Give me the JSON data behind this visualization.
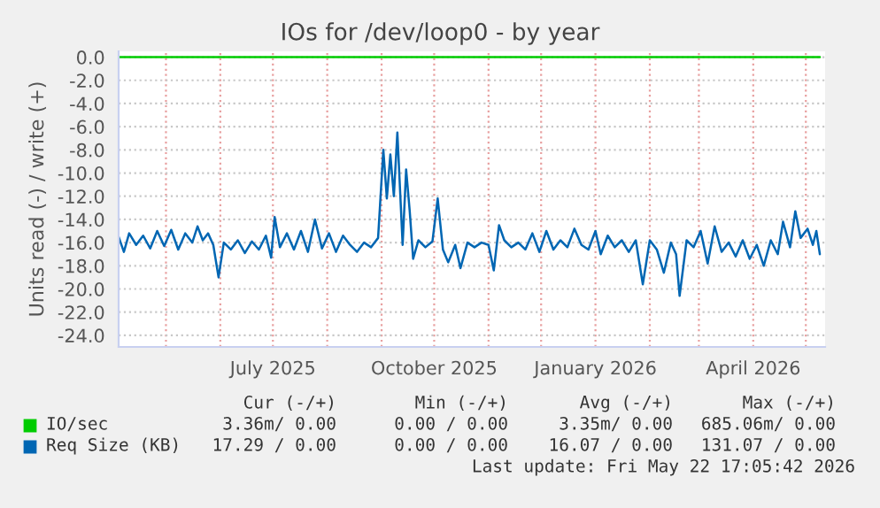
{
  "chart_data": {
    "type": "line",
    "title": "IOs for /dev/loop0 - by year",
    "ylabel": "Units read (-) / write (+)",
    "xlim": [
      "2025-04-04",
      "2026-05-12"
    ],
    "ylim": [
      -25.0,
      0.5
    ],
    "xticks": [
      {
        "value": "2025-05-01",
        "label": null
      },
      {
        "value": "2025-06-01",
        "label": null
      },
      {
        "value": "2025-07-01",
        "label": "July 2025"
      },
      {
        "value": "2025-08-01",
        "label": null
      },
      {
        "value": "2025-09-01",
        "label": null
      },
      {
        "value": "2025-10-01",
        "label": "October 2025"
      },
      {
        "value": "2025-11-01",
        "label": null
      },
      {
        "value": "2025-12-01",
        "label": null
      },
      {
        "value": "2026-01-01",
        "label": "January 2026"
      },
      {
        "value": "2026-02-01",
        "label": null
      },
      {
        "value": "2026-03-01",
        "label": null
      },
      {
        "value": "2026-04-01",
        "label": "April 2026"
      },
      {
        "value": "2026-05-01",
        "label": null
      }
    ],
    "yticks": [
      {
        "value": 0,
        "label": "0.0"
      },
      {
        "value": -2,
        "label": "-2.0"
      },
      {
        "value": -4,
        "label": "-4.0"
      },
      {
        "value": -6,
        "label": "-6.0"
      },
      {
        "value": -8,
        "label": "-8.0"
      },
      {
        "value": -10,
        "label": "-10.0"
      },
      {
        "value": -12,
        "label": "-12.0"
      },
      {
        "value": -14,
        "label": "-14.0"
      },
      {
        "value": -16,
        "label": "-16.0"
      },
      {
        "value": -18,
        "label": "-18.0"
      },
      {
        "value": -20,
        "label": "-20.0"
      },
      {
        "value": -22,
        "label": "-22.0"
      },
      {
        "value": -24,
        "label": "-24.0"
      }
    ],
    "grid": true,
    "legend": "bottom left",
    "series": [
      {
        "name": "IO/sec",
        "color": "#00cc00",
        "x": [
          "2025-04-04",
          "2026-05-09"
        ],
        "values": [
          0,
          0
        ]
      },
      {
        "name": "Req Size (KB)",
        "color": "#0066b3",
        "x": [
          "2025-04-04",
          "2025-04-07",
          "2025-04-10",
          "2025-04-14",
          "2025-04-18",
          "2025-04-22",
          "2025-04-26",
          "2025-04-30",
          "2025-05-04",
          "2025-05-08",
          "2025-05-12",
          "2025-05-16",
          "2025-05-19",
          "2025-05-22",
          "2025-05-25",
          "2025-05-28",
          "2025-05-31",
          "2025-06-03",
          "2025-06-07",
          "2025-06-11",
          "2025-06-15",
          "2025-06-19",
          "2025-06-23",
          "2025-06-27",
          "2025-06-30",
          "2025-07-02",
          "2025-07-05",
          "2025-07-09",
          "2025-07-13",
          "2025-07-17",
          "2025-07-21",
          "2025-07-25",
          "2025-07-29",
          "2025-08-02",
          "2025-08-06",
          "2025-08-10",
          "2025-08-14",
          "2025-08-18",
          "2025-08-22",
          "2025-08-26",
          "2025-08-30",
          "2025-09-02",
          "2025-09-04",
          "2025-09-06",
          "2025-09-08",
          "2025-09-10",
          "2025-09-13",
          "2025-09-15",
          "2025-09-17",
          "2025-09-19",
          "2025-09-22",
          "2025-09-26",
          "2025-09-30",
          "2025-10-03",
          "2025-10-06",
          "2025-10-09",
          "2025-10-13",
          "2025-10-16",
          "2025-10-20",
          "2025-10-24",
          "2025-10-28",
          "2025-11-01",
          "2025-11-04",
          "2025-11-07",
          "2025-11-10",
          "2025-11-14",
          "2025-11-18",
          "2025-11-22",
          "2025-11-26",
          "2025-11-30",
          "2025-12-04",
          "2025-12-08",
          "2025-12-12",
          "2025-12-16",
          "2025-12-20",
          "2025-12-24",
          "2025-12-28",
          "2026-01-01",
          "2026-01-04",
          "2026-01-08",
          "2026-01-12",
          "2026-01-16",
          "2026-01-20",
          "2026-01-24",
          "2026-01-28",
          "2026-02-01",
          "2026-02-05",
          "2026-02-09",
          "2026-02-13",
          "2026-02-16",
          "2026-02-18",
          "2026-02-22",
          "2026-02-26",
          "2026-03-02",
          "2026-03-06",
          "2026-03-10",
          "2026-03-14",
          "2026-03-18",
          "2026-03-22",
          "2026-03-26",
          "2026-03-30",
          "2026-04-03",
          "2026-04-07",
          "2026-04-11",
          "2026-04-15",
          "2026-04-18",
          "2026-04-22",
          "2026-04-25",
          "2026-04-28",
          "2026-05-02",
          "2026-05-05",
          "2026-05-07",
          "2026-05-09"
        ],
        "values": [
          -15.5,
          -16.8,
          -15.2,
          -16.2,
          -15.4,
          -16.5,
          -15.0,
          -16.3,
          -14.9,
          -16.6,
          -15.2,
          -16.0,
          -14.6,
          -15.8,
          -15.2,
          -16.2,
          -19.0,
          -16.0,
          -16.6,
          -15.8,
          -16.9,
          -15.9,
          -16.6,
          -15.4,
          -17.3,
          -13.8,
          -16.4,
          -15.2,
          -16.6,
          -15.0,
          -16.8,
          -14.0,
          -16.5,
          -15.2,
          -16.8,
          -15.4,
          -16.2,
          -16.8,
          -16.0,
          -16.4,
          -15.6,
          -8.0,
          -12.2,
          -8.4,
          -12.0,
          -6.5,
          -16.2,
          -9.7,
          -13.2,
          -17.4,
          -15.8,
          -16.4,
          -15.9,
          -12.2,
          -16.6,
          -17.7,
          -16.2,
          -18.2,
          -16.0,
          -16.4,
          -16.0,
          -16.2,
          -18.4,
          -14.5,
          -15.8,
          -16.4,
          -16.0,
          -16.6,
          -15.2,
          -16.8,
          -15.0,
          -16.6,
          -15.8,
          -16.4,
          -14.8,
          -16.2,
          -16.6,
          -15.0,
          -17.0,
          -15.4,
          -16.4,
          -15.8,
          -16.8,
          -15.8,
          -19.6,
          -15.8,
          -16.6,
          -18.6,
          -16.0,
          -17.0,
          -20.6,
          -15.8,
          -16.4,
          -15.0,
          -17.8,
          -14.6,
          -16.8,
          -16.0,
          -17.2,
          -15.8,
          -17.4,
          -16.2,
          -18.0,
          -15.8,
          -17.0,
          -14.2,
          -16.4,
          -13.3,
          -15.6,
          -14.8,
          -16.2,
          -15.0,
          -17.0
        ]
      }
    ],
    "annotations": [
      "Cur (-/+)",
      "Min (-/+)",
      "Avg (-/+)",
      "Max (-/+)",
      "3.36m/ 0.00",
      "0.00 / 0.00",
      "3.35m/ 0.00",
      "685.06m/ 0.00",
      "17.29 / 0.00",
      "0.00 / 0.00",
      "16.07 / 0.00",
      "131.07 / 0.00",
      "Last update: Fri May 22 17:05:42 2026"
    ]
  }
}
